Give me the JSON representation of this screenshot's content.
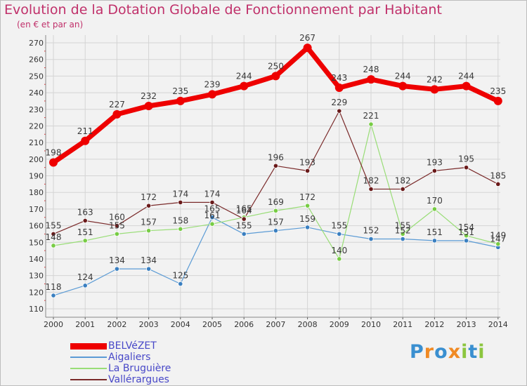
{
  "title": "Evolution de la Dotation Globale de Fonctionnement par Habitant",
  "subtitle": "(en € et par an)",
  "logo": {
    "text": "Proxiti",
    "letters": [
      {
        "ch": "P",
        "color": "#3a8fd0"
      },
      {
        "ch": "r",
        "color": "#f08a24"
      },
      {
        "ch": "o",
        "color": "#3a8fd0"
      },
      {
        "ch": "x",
        "color": "#f08a24"
      },
      {
        "ch": "i",
        "color": "#8cc63f"
      },
      {
        "ch": "t",
        "color": "#3a8fd0"
      },
      {
        "ch": "i",
        "color": "#8cc63f"
      }
    ]
  },
  "chart_data": {
    "type": "line",
    "title": "Evolution de la Dotation Globale de Fonctionnement par Habitant",
    "ylabel": "(en € et par an)",
    "xlabel": "",
    "ylim": [
      110,
      270
    ],
    "yticks": [
      110,
      120,
      130,
      140,
      150,
      160,
      170,
      180,
      190,
      200,
      210,
      220,
      230,
      240,
      250,
      260,
      270
    ],
    "grid": true,
    "categories": [
      "2000",
      "2001",
      "2002",
      "2003",
      "2004",
      "2005",
      "2006",
      "2007",
      "2008",
      "2009",
      "2010",
      "2011",
      "2012",
      "2013",
      "2014"
    ],
    "series": [
      {
        "name": "BELVéZET",
        "color": "#ee0000",
        "point_color": "#ee0000",
        "values": [
          198,
          211,
          227,
          232,
          235,
          239,
          244,
          250,
          267,
          243,
          248,
          244,
          242,
          244,
          235
        ]
      },
      {
        "name": "Aigaliers",
        "color": "#5b9bd5",
        "point_color": "#3a7fc0",
        "values": [
          118,
          124,
          134,
          134,
          125,
          165,
          155,
          157,
          159,
          155,
          152,
          152,
          151,
          151,
          147
        ]
      },
      {
        "name": "La Bruguière",
        "color": "#99dd77",
        "point_color": "#77cc44",
        "values": [
          148,
          151,
          155,
          157,
          158,
          161,
          165,
          169,
          172,
          140,
          221,
          155,
          170,
          154,
          149
        ]
      },
      {
        "name": "Vallérargues",
        "color": "#7a2a2a",
        "point_color": "#6a1a1a",
        "values": [
          155,
          163,
          160,
          172,
          174,
          174,
          164,
          196,
          193,
          229,
          182,
          182,
          193,
          195,
          185
        ]
      }
    ]
  }
}
